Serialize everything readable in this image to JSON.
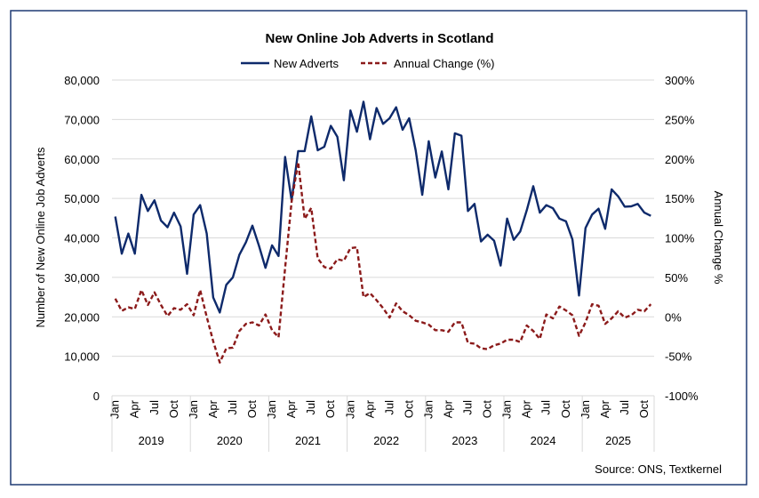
{
  "chart_data": {
    "type": "line",
    "title": "New Online Job Adverts in Scotland",
    "ylabel": "Number of New Online Job Adverts",
    "y2label": "Annual Change %",
    "ylim": [
      0,
      80000
    ],
    "y2lim": [
      -100,
      300
    ],
    "yticks": [
      "0",
      "10,000",
      "20,000",
      "30,000",
      "40,000",
      "50,000",
      "60,000",
      "70,000",
      "80,000"
    ],
    "y2ticks": [
      "-100%",
      "-50%",
      "0%",
      "50%",
      "100%",
      "150%",
      "200%",
      "250%",
      "300%"
    ],
    "month_ticks": [
      "Jan",
      "Apr",
      "Jul",
      "Oct"
    ],
    "years": [
      "2019",
      "2020",
      "2021",
      "2022",
      "2023",
      "2024",
      "2025"
    ],
    "x_start": "Jan 2019",
    "x_end": "Nov 2025",
    "grid": true,
    "legend": "top",
    "source": "Source: ONS, Textkernel",
    "series": [
      {
        "name": "New Adverts",
        "axis": "left",
        "color": "#0e2a6b",
        "style": "solid",
        "values": [
          45400,
          36000,
          41100,
          36000,
          50900,
          46800,
          49500,
          44400,
          42700,
          46400,
          42900,
          30900,
          45900,
          48300,
          41100,
          24900,
          21100,
          28100,
          30000,
          35700,
          38900,
          43100,
          38000,
          32400,
          38100,
          35400,
          60500,
          49500,
          62000,
          62000,
          70800,
          62200,
          63100,
          68400,
          65600,
          54600,
          72300,
          66900,
          74500,
          65000,
          72900,
          68900,
          70300,
          73100,
          67400,
          70300,
          62200,
          50900,
          64500,
          55300,
          61900,
          52300,
          66500,
          65900,
          46800,
          48600,
          39100,
          40800,
          39300,
          33000,
          44900,
          39500,
          41600,
          47000,
          53100,
          46400,
          48300,
          47500,
          44900,
          44200,
          39600,
          25400,
          42500,
          45900,
          47400,
          42300,
          52300,
          50500,
          47900,
          48000,
          48600,
          46400,
          45600
        ]
      },
      {
        "name": "Annual Change (%)",
        "axis": "right",
        "color": "#8b1a1a",
        "style": "dashed",
        "values": [
          23,
          7.5,
          12,
          10,
          34,
          15,
          31,
          15,
          1,
          11,
          9,
          16,
          2,
          34,
          0,
          -31,
          -58,
          -40,
          -39,
          -18,
          -9,
          -7,
          -11,
          3,
          -17,
          -26,
          62,
          146,
          196,
          124,
          138,
          74,
          63,
          61,
          73,
          71,
          87,
          88,
          25,
          30,
          21,
          11,
          -1,
          17,
          7,
          2,
          -5,
          -7,
          -10,
          -17,
          -17,
          -19,
          -7,
          -7,
          -33,
          -34,
          -40,
          -41,
          -36,
          -34,
          -29,
          -29,
          -32,
          -11,
          -18,
          -28,
          3,
          -2,
          13,
          8,
          2,
          -24,
          -7,
          16,
          14,
          -9,
          -2,
          7,
          -1,
          2,
          9,
          7,
          16
        ]
      }
    ]
  }
}
